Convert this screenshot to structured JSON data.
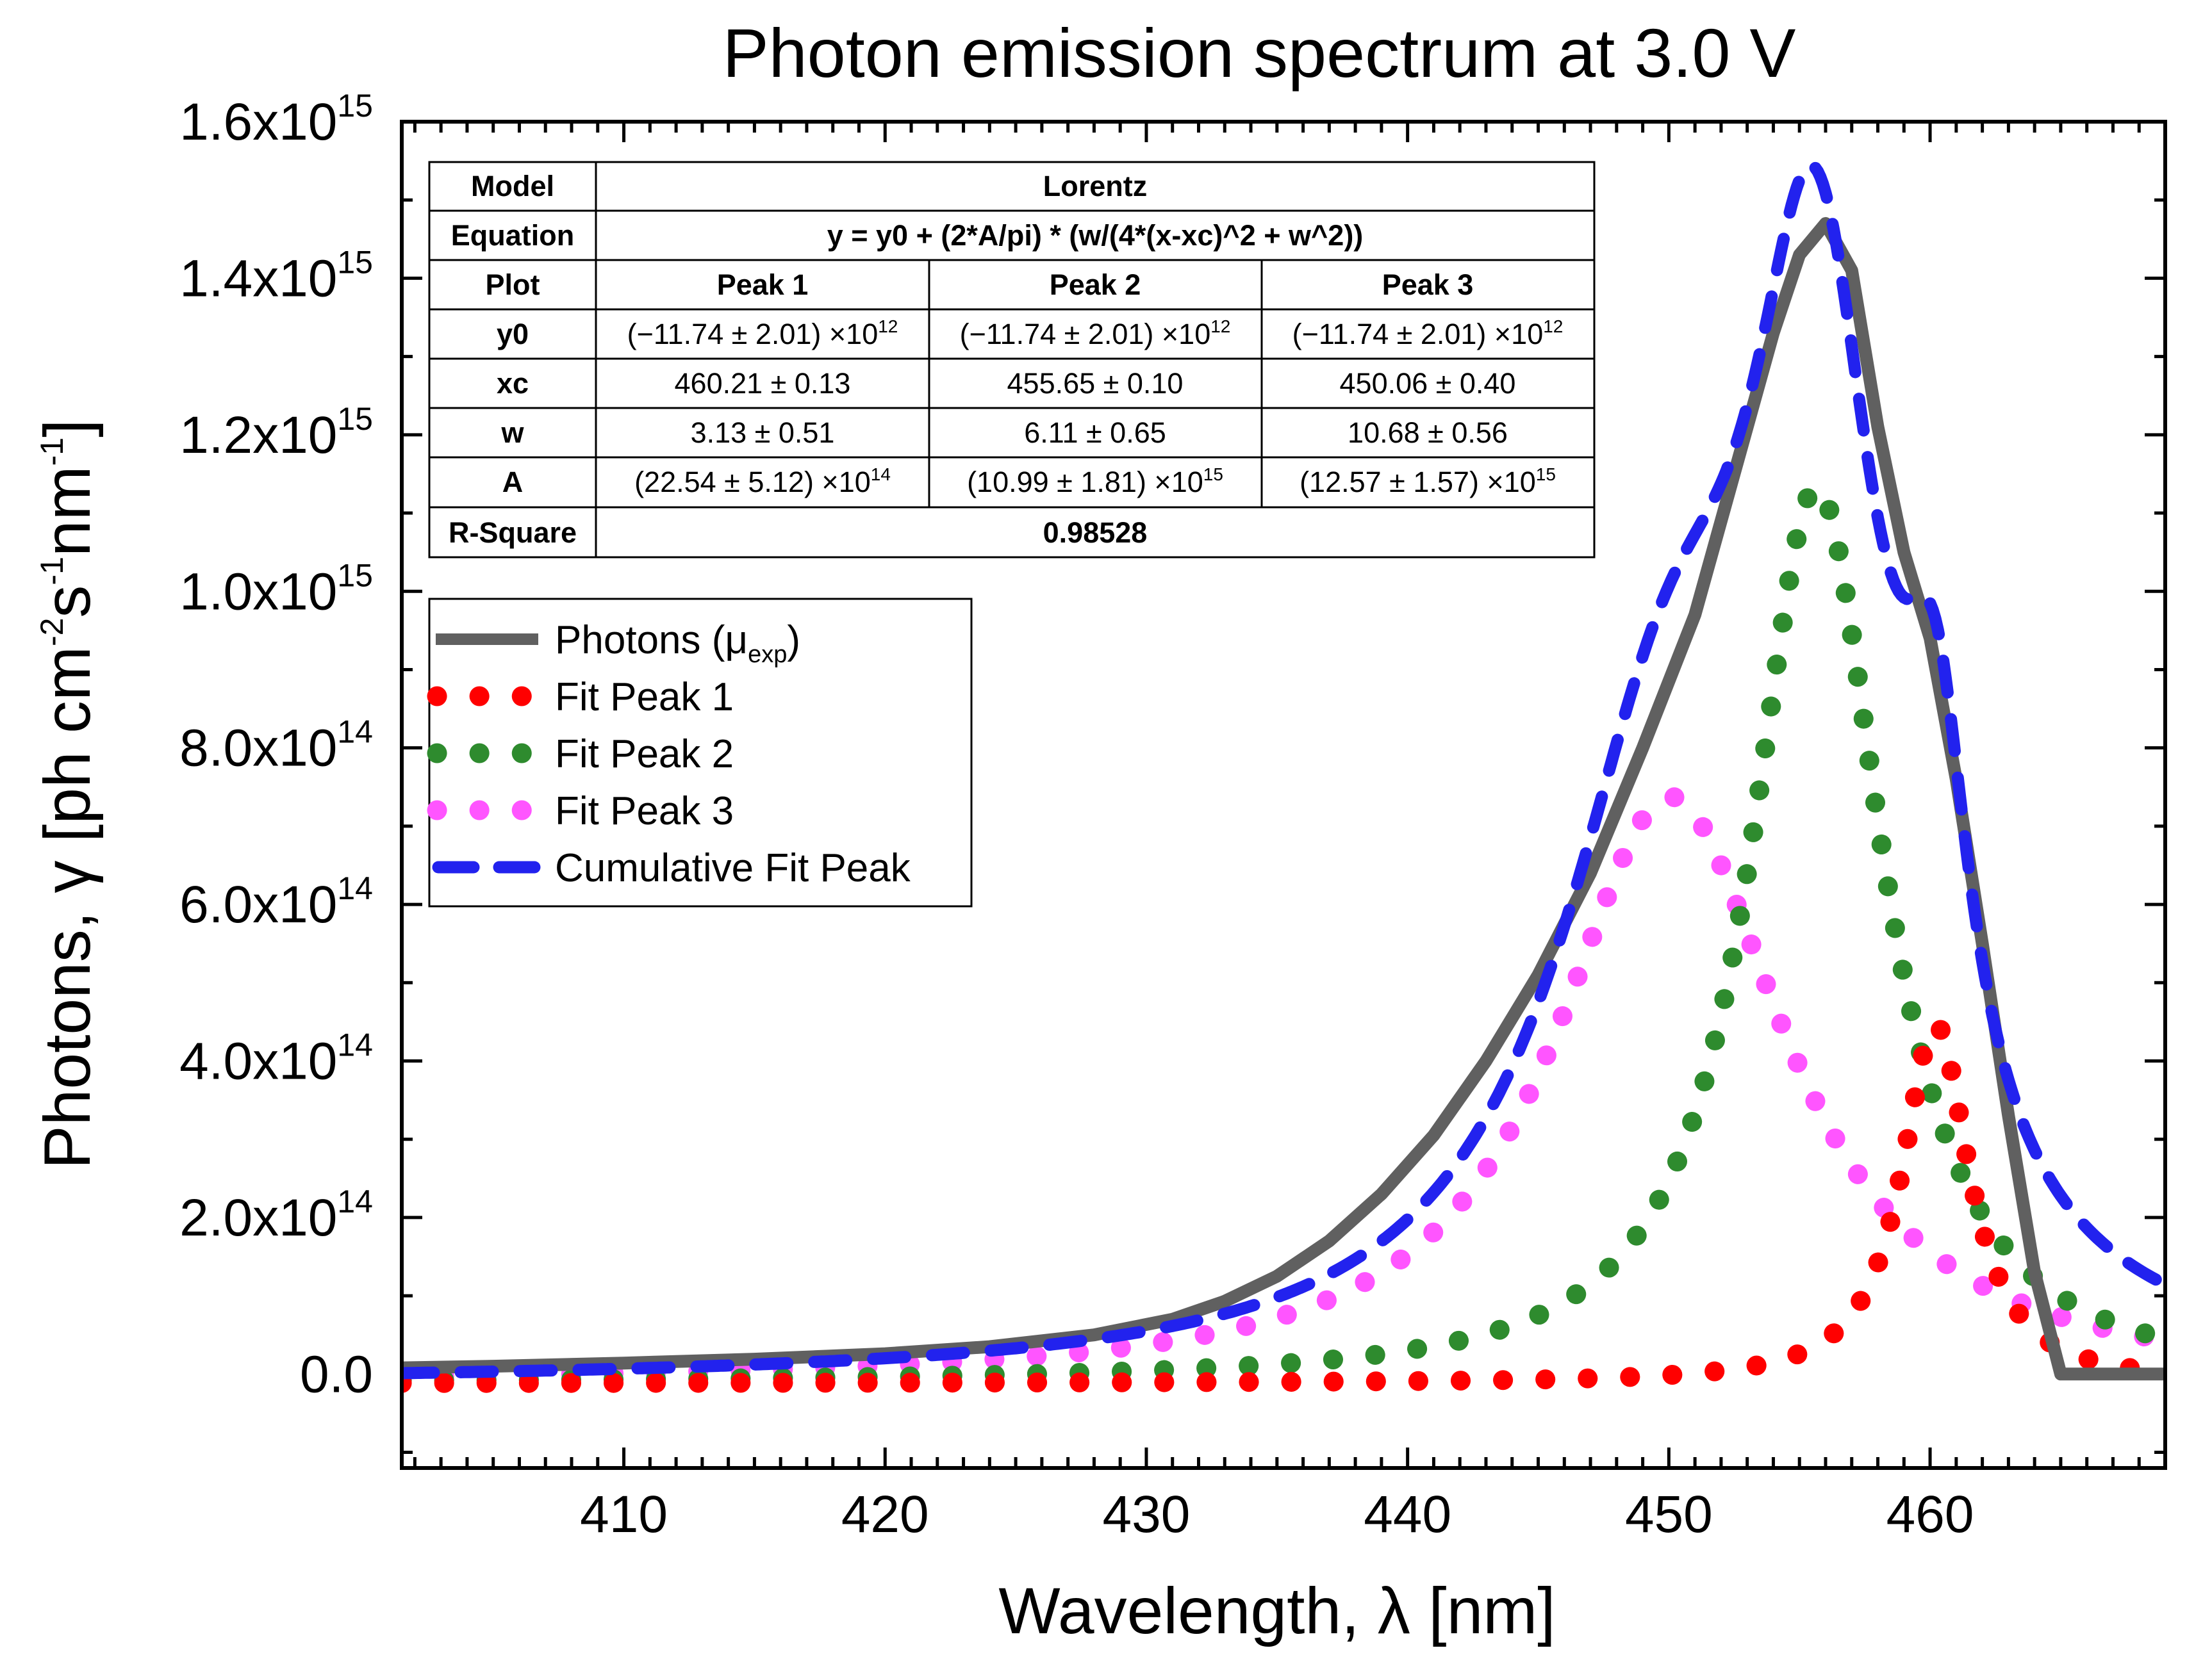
{
  "chart_data": {
    "type": "line",
    "title": "Photon emission spectrum at 3.0 V",
    "xlabel": "Wavelength, λ [nm]",
    "ylabel": "Photons, γ [ph cm^-2 s^-1 nm^-1]",
    "ylabel_parts": [
      "Photons, γ [ph cm",
      "-2",
      "s",
      "-1",
      "nm",
      "-1",
      "]"
    ],
    "xlim": [
      401.5,
      469
    ],
    "ylim": [
      -120000000000000.0,
      1600000000000000.0
    ],
    "x_ticks": [
      {
        "value": 410,
        "label": "410"
      },
      {
        "value": 420,
        "label": "420"
      },
      {
        "value": 430,
        "label": "430"
      },
      {
        "value": 440,
        "label": "440"
      },
      {
        "value": 450,
        "label": "450"
      },
      {
        "value": 460,
        "label": "460"
      }
    ],
    "y_ticks": [
      {
        "value": 0,
        "mant": "0.0",
        "exp": ""
      },
      {
        "value": 200000000000000.0,
        "mant": "2.0x10",
        "exp": "14"
      },
      {
        "value": 400000000000000.0,
        "mant": "4.0x10",
        "exp": "14"
      },
      {
        "value": 600000000000000.0,
        "mant": "6.0x10",
        "exp": "14"
      },
      {
        "value": 800000000000000.0,
        "mant": "8.0x10",
        "exp": "14"
      },
      {
        "value": 1000000000000000.0,
        "mant": "1.0x10",
        "exp": "15"
      },
      {
        "value": 1200000000000000.0,
        "mant": "1.2x10",
        "exp": "15"
      },
      {
        "value": 1400000000000000.0,
        "mant": "1.4x10",
        "exp": "15"
      },
      {
        "value": 1600000000000000.0,
        "mant": "1.6x10",
        "exp": "15"
      }
    ],
    "x_minor_step": 1,
    "y_minor_step": 100000000000000.0,
    "lorentz": {
      "y0": -11740000000000.0,
      "peaks": [
        {
          "xc": 460.21,
          "w": 3.13,
          "A": 2254000000000000.0
        },
        {
          "xc": 455.65,
          "w": 6.11,
          "A": 1.099e+16
        },
        {
          "xc": 450.06,
          "w": 10.68,
          "A": 1.257e+16
        }
      ]
    },
    "series": [
      {
        "name": "Photons (μexp)",
        "kind": "measured",
        "color": "#606060",
        "style": "solid",
        "x": [
          401.5,
          405,
          410,
          415,
          420,
          424,
          428,
          431,
          433,
          435,
          437,
          439,
          441,
          443,
          445,
          447,
          449,
          451,
          452,
          453,
          454,
          455,
          456,
          457,
          458,
          459,
          460,
          461,
          462,
          463,
          464,
          465,
          466,
          467,
          468,
          469
        ],
        "y": [
          8000000000000.0,
          10000000000000.0,
          14000000000000.0,
          19000000000000.0,
          26000000000000.0,
          35000000000000.0,
          50000000000000.0,
          70000000000000.0,
          93000000000000.0,
          125000000000000.0,
          170000000000000.0,
          230000000000000.0,
          305000000000000.0,
          400000000000000.0,
          510000000000000.0,
          640000000000000.0,
          800000000000000.0,
          970000000000000.0,
          1090000000000000.0,
          1210000000000000.0,
          1330000000000000.0,
          1430000000000000.0,
          1470000000000000.0,
          1410000000000000.0,
          1210000000000000.0,
          1050000000000000.0,
          940000000000000.0,
          760000000000000.0,
          550000000000000.0,
          330000000000000.0,
          130000000000000.0,
          0,
          0,
          0,
          0,
          0
        ]
      },
      {
        "name": "Fit Peak 1",
        "kind": "peak",
        "peak": 0,
        "color": "#ff0000",
        "style": "dotted"
      },
      {
        "name": "Fit Peak 2",
        "kind": "peak",
        "peak": 1,
        "color": "#2e8b2e",
        "style": "dotted"
      },
      {
        "name": "Fit Peak 3",
        "kind": "peak",
        "peak": 2,
        "color": "#ff55ff",
        "style": "dotted"
      },
      {
        "name": "Cumulative Fit Peak",
        "kind": "cumulative",
        "color": "#2222ee",
        "style": "dashed"
      }
    ],
    "legend": {
      "position": "upper-left",
      "entries": [
        {
          "text": "Photons (μ",
          "sub": "exp",
          "after": ")",
          "color": "#606060",
          "style": "solid"
        },
        {
          "text": "Fit Peak 1",
          "sub": "",
          "after": "",
          "color": "#ff0000",
          "style": "dotted"
        },
        {
          "text": "Fit Peak 2",
          "sub": "",
          "after": "",
          "color": "#2e8b2e",
          "style": "dotted"
        },
        {
          "text": "Fit Peak 3",
          "sub": "",
          "after": "",
          "color": "#ff55ff",
          "style": "dotted"
        },
        {
          "text": "Cumulative Fit Peak",
          "sub": "",
          "after": "",
          "color": "#2222ee",
          "style": "dashed"
        }
      ]
    },
    "fit_table": {
      "model_label": "Model",
      "model": "Lorentz",
      "equation_label": "Equation",
      "equation": "y = y0 + (2*A/pi) * (w/(4*(x-xc)^2 + w^2))",
      "plot_label": "Plot",
      "peaks": [
        "Peak 1",
        "Peak 2",
        "Peak 3"
      ],
      "rows": [
        {
          "label": "y0",
          "cells": [
            {
              "text": "(−11.74 ± 2.01) ×10",
              "exp": "12"
            },
            {
              "text": "(−11.74 ± 2.01) ×10",
              "exp": "12"
            },
            {
              "text": "(−11.74 ± 2.01) ×10",
              "exp": "12"
            }
          ]
        },
        {
          "label": "xc",
          "cells": [
            {
              "text": "460.21 ± 0.13",
              "exp": ""
            },
            {
              "text": "455.65 ± 0.10",
              "exp": ""
            },
            {
              "text": "450.06 ± 0.40",
              "exp": ""
            }
          ]
        },
        {
          "label": "w",
          "cells": [
            {
              "text": "3.13 ± 0.51",
              "exp": ""
            },
            {
              "text": "6.11 ± 0.65",
              "exp": ""
            },
            {
              "text": "10.68 ± 0.56",
              "exp": ""
            }
          ]
        },
        {
          "label": "A",
          "cells": [
            {
              "text": "(22.54 ± 5.12) ×10",
              "exp": "14"
            },
            {
              "text": "(10.99 ± 1.81) ×10",
              "exp": "15"
            },
            {
              "text": "(12.57 ± 1.57) ×10",
              "exp": "15"
            }
          ]
        }
      ],
      "rsq_label": "R-Square",
      "rsq": "0.98528"
    }
  }
}
